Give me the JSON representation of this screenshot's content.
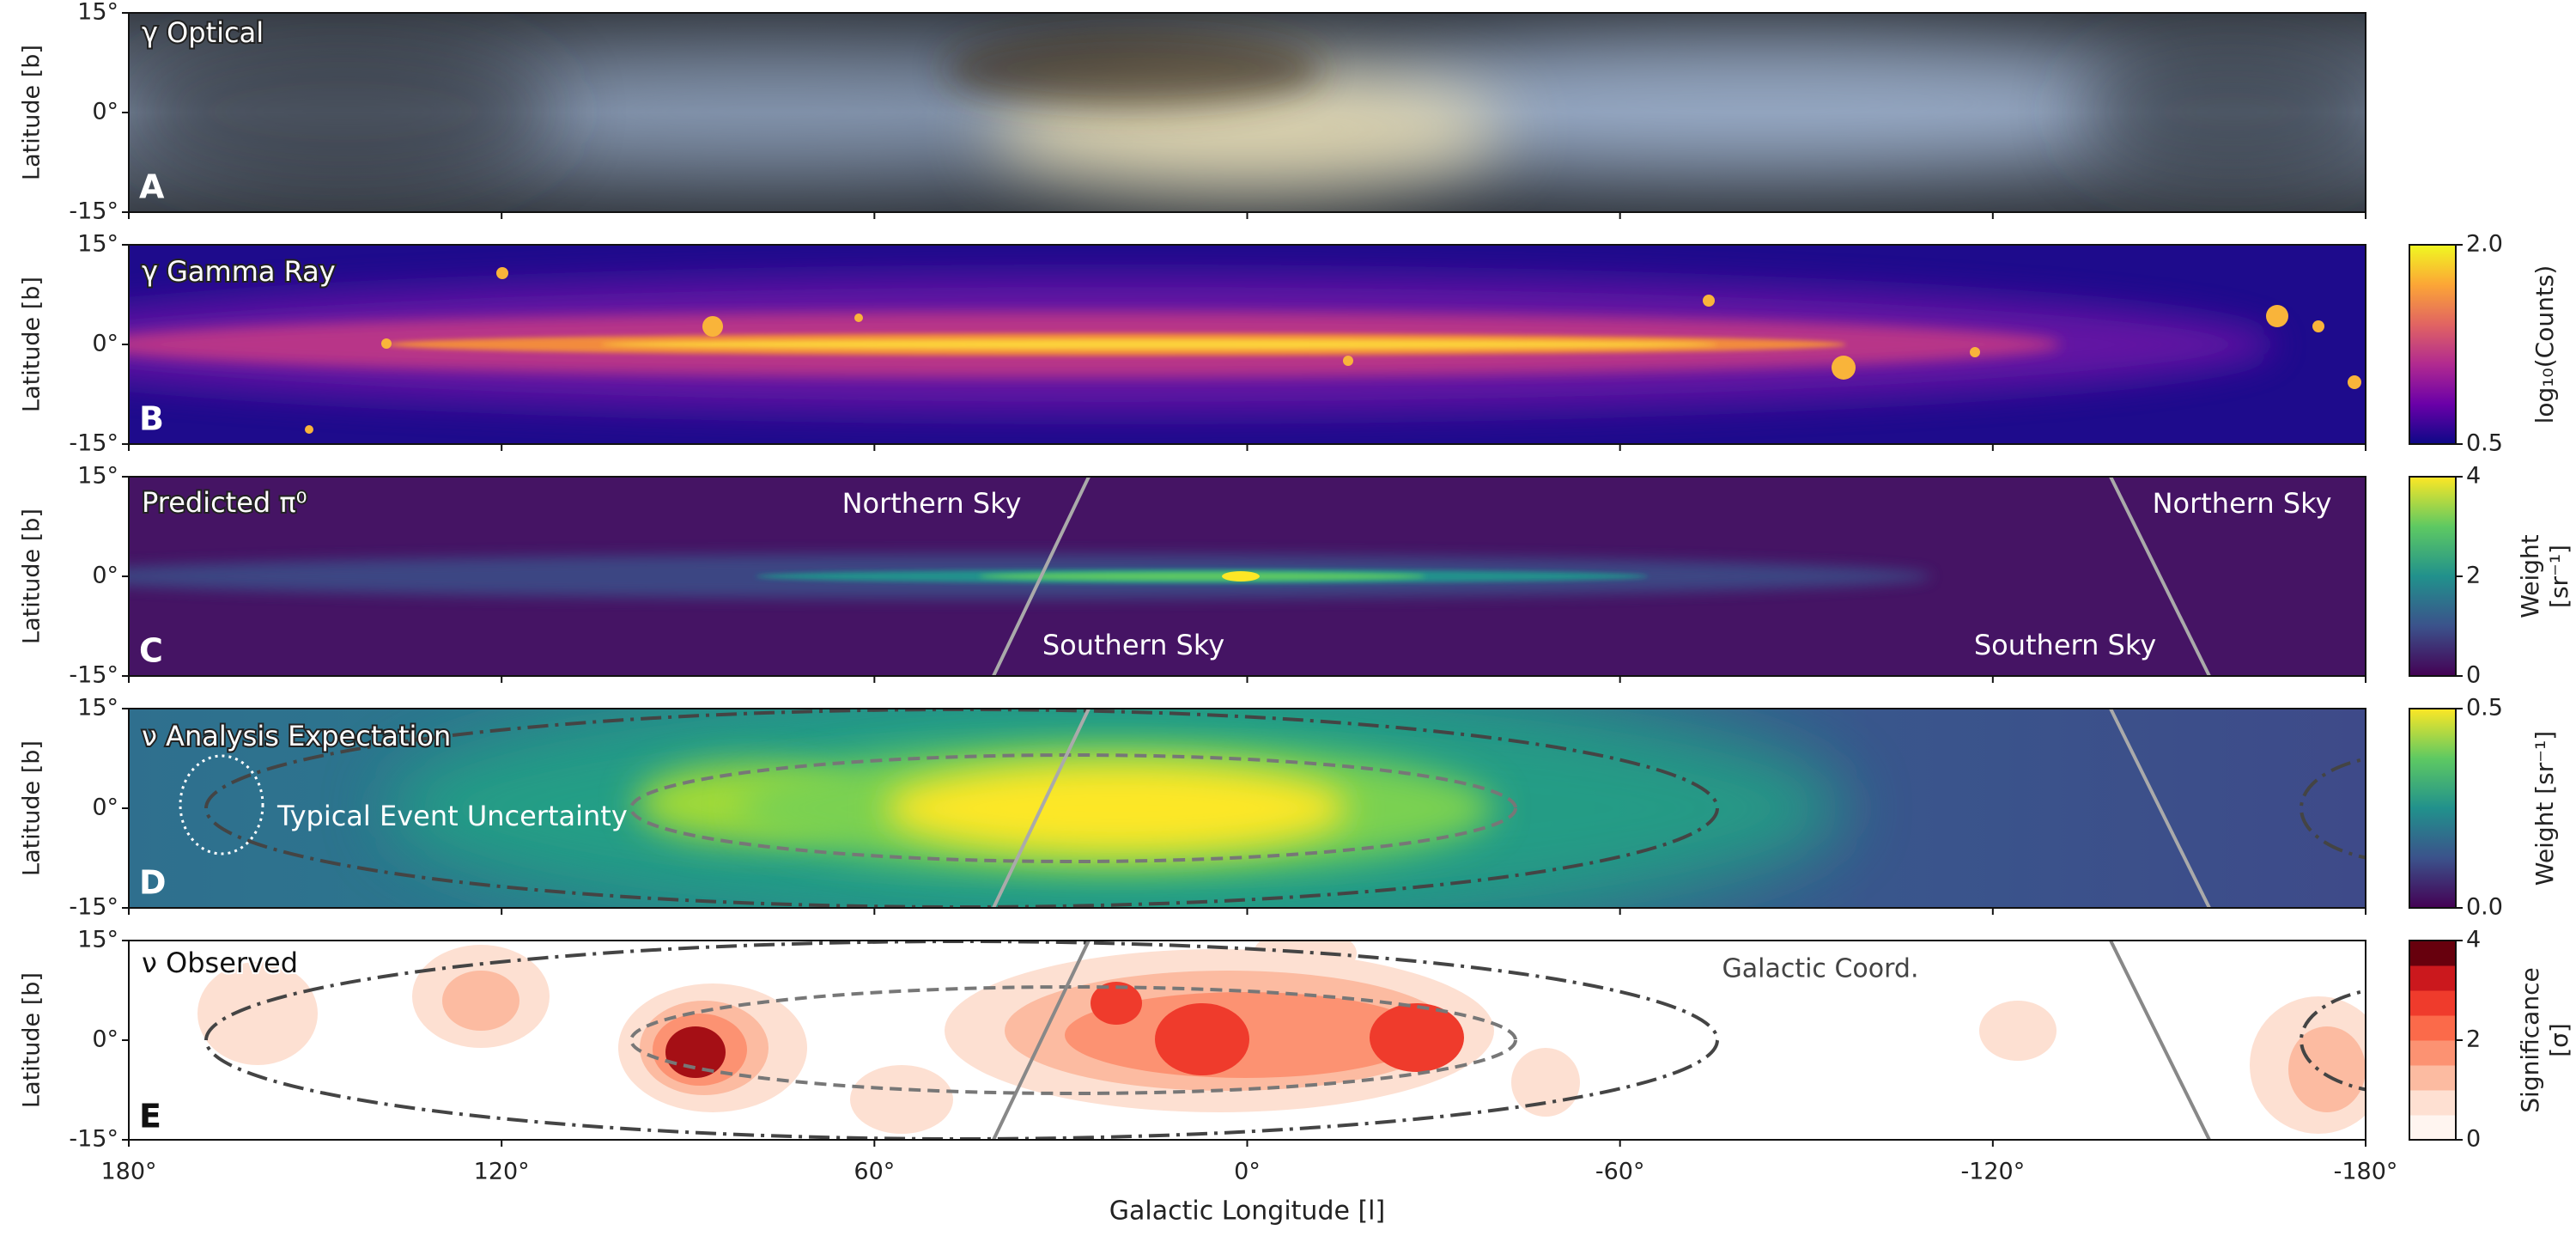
{
  "chart_data": [
    {
      "type": "image",
      "title": "γ Optical",
      "panel_label": "A",
      "ylabel": "Latitude [b]",
      "xlim": [
        180,
        -180
      ],
      "ylim": [
        -15,
        15
      ],
      "yticks": [
        {
          "value": -15,
          "label": "-15°"
        },
        {
          "value": 0,
          "label": "0°"
        },
        {
          "value": 15,
          "label": "15°"
        }
      ]
    },
    {
      "type": "image",
      "title": "γ Gamma Ray",
      "panel_label": "B",
      "ylabel": "Latitude [b]",
      "xlim": [
        180,
        -180
      ],
      "ylim": [
        -15,
        15
      ],
      "yticks": [
        {
          "value": -15,
          "label": "-15°"
        },
        {
          "value": 0,
          "label": "0°"
        },
        {
          "value": 15,
          "label": "15°"
        }
      ],
      "colorbar_label": "log₁₀(Counts)",
      "clim": [
        0.5,
        2
      ],
      "cticks": [
        0.5,
        {
          "value": 2,
          "label": "2.0"
        }
      ],
      "colormap": [
        "#0d0887",
        "#6a00a8",
        "#b12a90",
        "#e16462",
        "#fca636",
        "#f0f921"
      ]
    },
    {
      "type": "image",
      "title": "Predicted π⁰",
      "panel_label": "C",
      "ylabel": "Latitude [b]",
      "xlim": [
        180,
        -180
      ],
      "ylim": [
        -15,
        15
      ],
      "yticks": [
        {
          "value": -15,
          "label": "-15°"
        },
        {
          "value": 0,
          "label": "0°"
        },
        {
          "value": 15,
          "label": "15°"
        }
      ],
      "annotations": [
        "Northern Sky",
        "Northern Sky",
        "Southern Sky",
        "Southern Sky"
      ],
      "colorbar_label": [
        "Weight",
        "[sr⁻¹]"
      ],
      "clim": [
        0,
        4
      ],
      "cticks": [
        0,
        2,
        4
      ],
      "colormap": [
        "#440154",
        "#3b528b",
        "#21918c",
        "#5ec962",
        "#fde725"
      ]
    },
    {
      "type": "image",
      "title": "ν Analysis Expectation",
      "panel_label": "D",
      "ylabel": "Latitude [b]",
      "xlim": [
        180,
        -180
      ],
      "ylim": [
        -15,
        15
      ],
      "yticks": [
        {
          "value": -15,
          "label": "-15°"
        },
        {
          "value": 0,
          "label": "0°"
        },
        {
          "value": 15,
          "label": "15°"
        }
      ],
      "annotations": [
        "Typical Event Uncertainty"
      ],
      "colorbar_label": "Weight [sr⁻¹]",
      "clim": [
        0,
        0.5
      ],
      "cticks": [
        {
          "value": 0,
          "label": "0.0"
        },
        0.5
      ],
      "colormap": [
        "#440154",
        "#3b528b",
        "#21918c",
        "#5ec962",
        "#fde725"
      ]
    },
    {
      "type": "image",
      "title": "ν Observed",
      "panel_label": "E",
      "ylabel": "Latitude [b]",
      "xlabel": "Galactic Longitude [l]",
      "xlim": [
        180,
        -180
      ],
      "ylim": [
        -15,
        15
      ],
      "xticks": [
        {
          "value": 180,
          "label": "180°"
        },
        {
          "value": 120,
          "label": "120°"
        },
        {
          "value": 60,
          "label": "60°"
        },
        {
          "value": 0,
          "label": "0°"
        },
        {
          "value": -60,
          "label": "-60°"
        },
        {
          "value": -120,
          "label": "-120°"
        },
        {
          "value": -180,
          "label": "-180°"
        }
      ],
      "yticks": [
        {
          "value": -15,
          "label": "-15°"
        },
        {
          "value": 0,
          "label": "0°"
        },
        {
          "value": 15,
          "label": "15°"
        }
      ],
      "annotations": [
        "Galactic Coord."
      ],
      "colorbar_label": [
        "Significance",
        "[σ]"
      ],
      "clim": [
        0,
        4
      ],
      "cticks": [
        0,
        2,
        4
      ],
      "discrete": true,
      "colormap": [
        "#fff5f0",
        "#fee0d2",
        "#fcbba1",
        "#fc9272",
        "#fb6a4a",
        "#ef3b2c",
        "#cb181d",
        "#67000d"
      ]
    }
  ]
}
